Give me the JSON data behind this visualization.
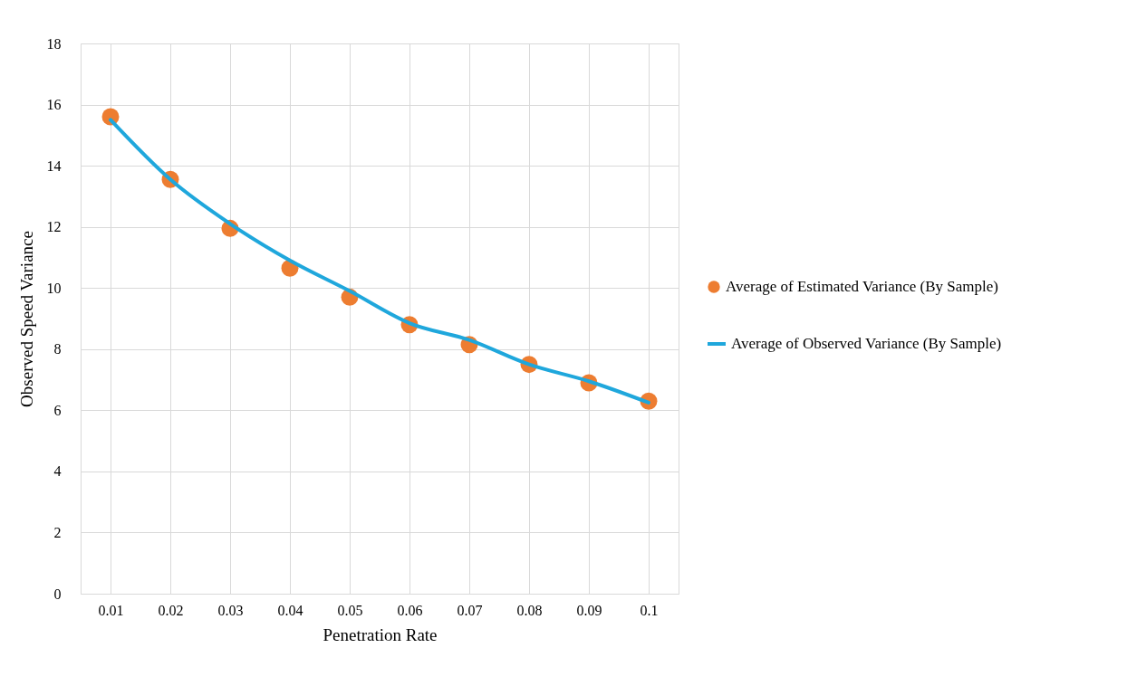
{
  "chart_data": {
    "type": "line",
    "xlabel": "Penetration Rate",
    "ylabel": "Observed Speed Variance",
    "categories": [
      "0.01",
      "0.02",
      "0.03",
      "0.04",
      "0.05",
      "0.06",
      "0.07",
      "0.08",
      "0.09",
      "0.1"
    ],
    "series": [
      {
        "name": "Average of Estimated Variance (By Sample)",
        "type": "scatter",
        "marker": "circle",
        "color": "#ed7d31",
        "values": [
          15.6,
          13.55,
          11.95,
          10.65,
          9.7,
          8.8,
          8.15,
          7.5,
          6.9,
          6.3
        ]
      },
      {
        "name": "Average of Observed Variance (By Sample)",
        "color": "#1fa7dc",
        "values": [
          15.5,
          13.55,
          12.1,
          10.9,
          9.9,
          8.85,
          8.3,
          7.5,
          6.95,
          6.25
        ]
      }
    ],
    "ylim": [
      0,
      18
    ],
    "yticks": [
      0,
      2,
      4,
      6,
      8,
      10,
      12,
      14,
      16,
      18
    ],
    "grid": true,
    "legend": "right",
    "line_style": "solid"
  }
}
